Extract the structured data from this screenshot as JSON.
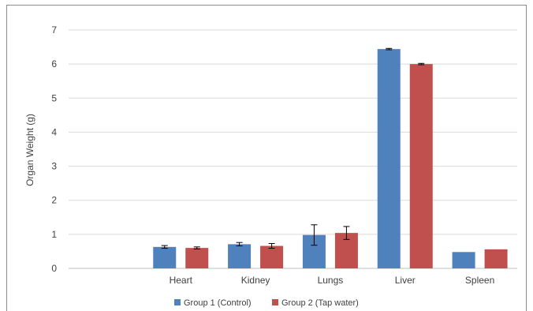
{
  "chart_data": {
    "type": "bar",
    "title": "",
    "xlabel": "",
    "ylabel": "Organ Weight (g)",
    "ylim": [
      0,
      7
    ],
    "yticks": [
      0,
      1,
      2,
      3,
      4,
      5,
      6,
      7
    ],
    "grid": true,
    "legend_position": "bottom",
    "categories": [
      "",
      "Heart",
      "Kidney",
      "Lungs",
      "Liver",
      "Spleen"
    ],
    "series": [
      {
        "name": "Group 1  (Control)",
        "color": "#4f81bd",
        "values": [
          null,
          0.63,
          0.71,
          0.98,
          6.44,
          0.48
        ],
        "errors": [
          null,
          0.04,
          0.05,
          0.3,
          0.02,
          null
        ]
      },
      {
        "name": "Group 2 (Tap water)",
        "color": "#c0504d",
        "values": [
          null,
          0.6,
          0.66,
          1.04,
          6.0,
          0.56
        ],
        "errors": [
          null,
          0.03,
          0.07,
          0.19,
          0.02,
          null
        ]
      }
    ]
  }
}
